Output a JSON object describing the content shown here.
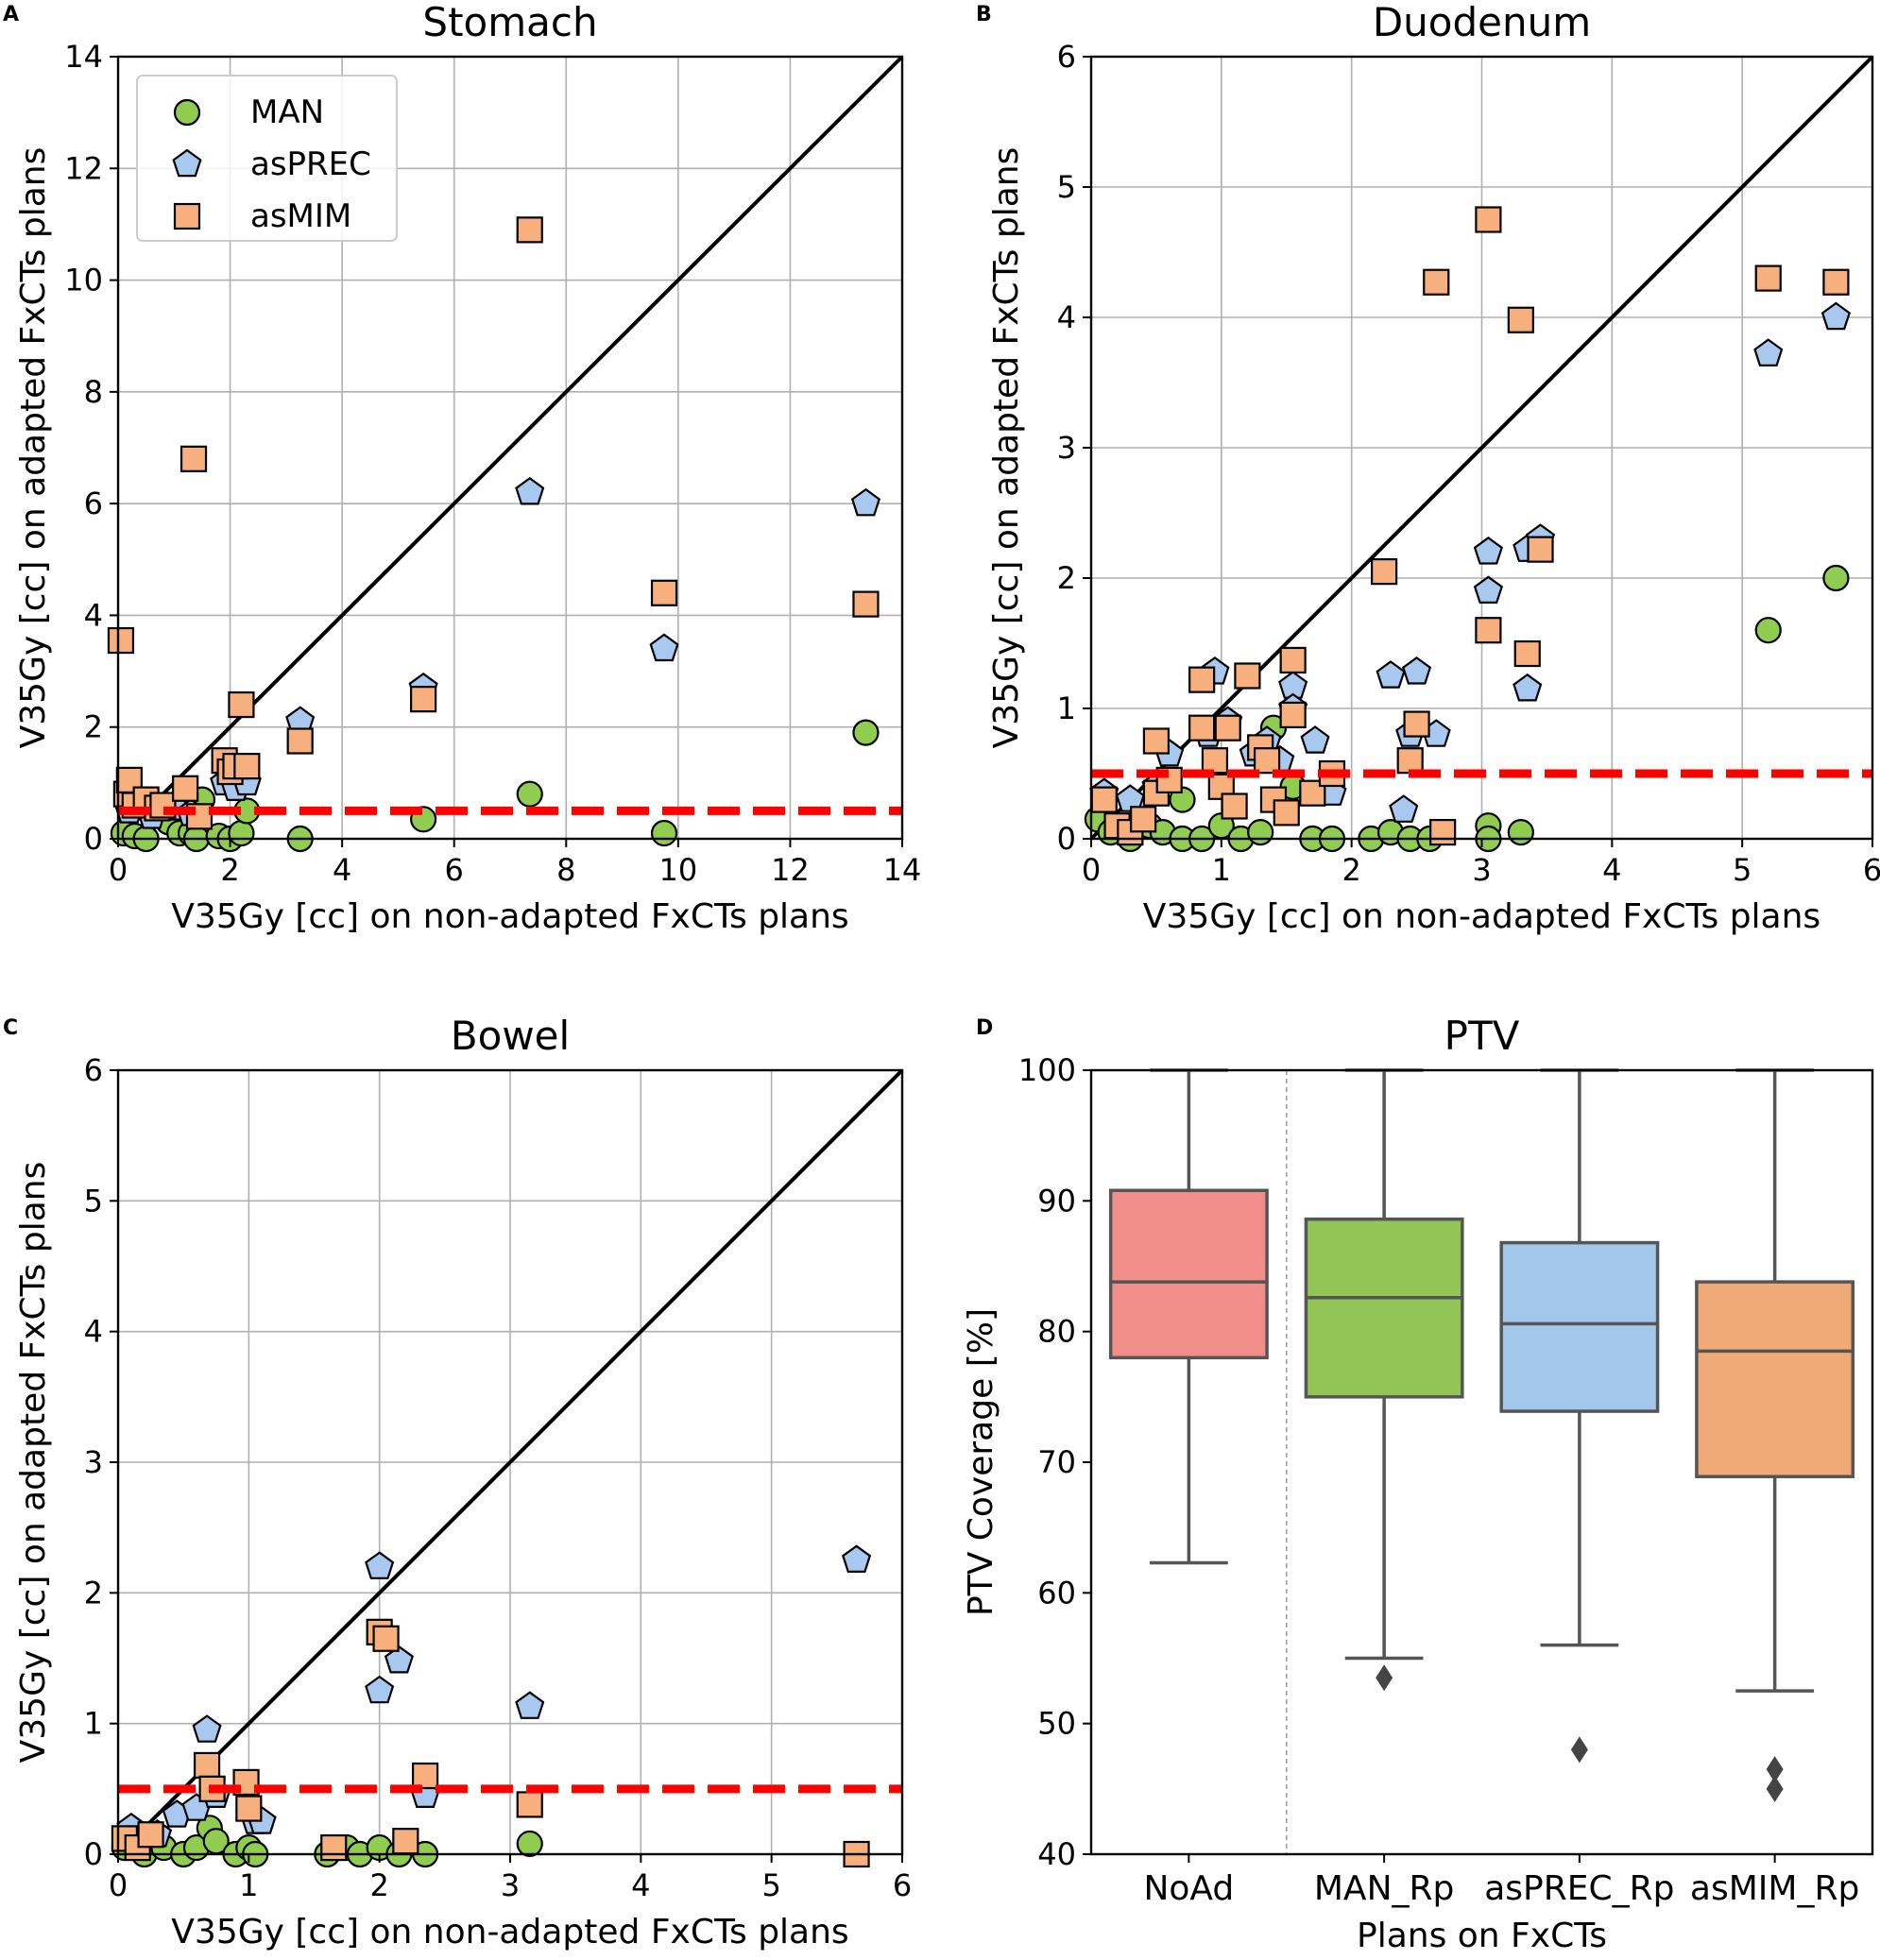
{
  "legend": {
    "entries": [
      {
        "name": "MAN",
        "marker": "circle",
        "color": "#8fcc50"
      },
      {
        "name": "asPREC",
        "marker": "pentagon",
        "color": "#a8c8f0"
      },
      {
        "name": "asMIM",
        "marker": "square",
        "color": "#f7b07d"
      }
    ]
  },
  "chart_data": [
    {
      "id": "A",
      "type": "scatter",
      "panel_label": "A",
      "title": "Stomach",
      "xlabel": "V35Gy [cc] on non-adapted FxCTs plans",
      "ylabel": "V35Gy [cc] on adapted FxCTs plans",
      "xlim": [
        0,
        14
      ],
      "ylim": [
        0,
        14
      ],
      "xticks": [
        "0",
        "2",
        "4",
        "6",
        "8",
        "10",
        "12",
        "14"
      ],
      "yticks": [
        "0",
        "2",
        "4",
        "6",
        "8",
        "10",
        "12",
        "14"
      ],
      "grid": true,
      "legend_position": "top-left",
      "reference_lines": [
        {
          "type": "identity",
          "color": "#000000",
          "style": "solid",
          "from": [
            0,
            0
          ],
          "to": [
            14,
            14
          ]
        },
        {
          "type": "threshold",
          "y": 0.5,
          "color": "#ff0000",
          "style": "dashed"
        }
      ],
      "series": [
        {
          "name": "MAN",
          "marker": "circle",
          "color": "#8fcc50",
          "points": [
            [
              0.1,
              0.1
            ],
            [
              0.3,
              0.05
            ],
            [
              0.5,
              0.0
            ],
            [
              0.9,
              0.3
            ],
            [
              1.1,
              0.1
            ],
            [
              1.3,
              0.1
            ],
            [
              1.4,
              0.0
            ],
            [
              1.5,
              0.7
            ],
            [
              1.8,
              0.05
            ],
            [
              2.0,
              0.0
            ],
            [
              2.2,
              0.1
            ],
            [
              2.3,
              0.5
            ],
            [
              3.25,
              0.0
            ],
            [
              5.45,
              0.35
            ],
            [
              7.35,
              0.8
            ],
            [
              9.75,
              0.1
            ],
            [
              13.35,
              1.9
            ]
          ]
        },
        {
          "name": "asPREC",
          "marker": "pentagon",
          "color": "#a8c8f0",
          "points": [
            [
              0.2,
              0.5
            ],
            [
              0.6,
              0.4
            ],
            [
              1.0,
              0.55
            ],
            [
              1.3,
              0.45
            ],
            [
              1.9,
              1.0
            ],
            [
              2.1,
              0.9
            ],
            [
              2.3,
              1.0
            ],
            [
              3.25,
              2.1
            ],
            [
              5.45,
              2.7
            ],
            [
              7.35,
              6.2
            ],
            [
              9.75,
              3.4
            ],
            [
              13.35,
              6.0
            ]
          ]
        },
        {
          "name": "asMIM",
          "marker": "square",
          "color": "#f7b07d",
          "points": [
            [
              0.05,
              3.55
            ],
            [
              0.15,
              0.8
            ],
            [
              0.2,
              1.05
            ],
            [
              0.3,
              0.6
            ],
            [
              0.5,
              0.7
            ],
            [
              0.7,
              0.55
            ],
            [
              0.8,
              0.6
            ],
            [
              1.2,
              0.9
            ],
            [
              1.35,
              6.8
            ],
            [
              1.45,
              0.4
            ],
            [
              1.9,
              1.4
            ],
            [
              2.0,
              1.2
            ],
            [
              2.1,
              1.3
            ],
            [
              2.2,
              2.4
            ],
            [
              2.3,
              1.3
            ],
            [
              3.25,
              1.75
            ],
            [
              5.45,
              2.5
            ],
            [
              7.35,
              10.9
            ],
            [
              9.75,
              4.4
            ],
            [
              13.35,
              4.2
            ]
          ]
        }
      ]
    },
    {
      "id": "B",
      "type": "scatter",
      "panel_label": "B",
      "title": "Duodenum",
      "xlabel": "V35Gy [cc] on non-adapted FxCTs plans",
      "ylabel": "V35Gy [cc] on adapted FxCTs plans",
      "xlim": [
        0,
        6
      ],
      "ylim": [
        0,
        6
      ],
      "xticks": [
        "0",
        "1",
        "2",
        "3",
        "4",
        "5",
        "6"
      ],
      "yticks": [
        "0",
        "1",
        "2",
        "3",
        "4",
        "5",
        "6"
      ],
      "grid": true,
      "reference_lines": [
        {
          "type": "identity",
          "color": "#000000",
          "style": "solid",
          "from": [
            0,
            0
          ],
          "to": [
            6,
            6
          ]
        },
        {
          "type": "threshold",
          "y": 0.5,
          "color": "#ff0000",
          "style": "dashed"
        }
      ],
      "series": [
        {
          "name": "MAN",
          "marker": "circle",
          "color": "#8fcc50",
          "points": [
            [
              0.05,
              0.15
            ],
            [
              0.15,
              0.05
            ],
            [
              0.3,
              0.0
            ],
            [
              0.45,
              0.1
            ],
            [
              0.55,
              0.05
            ],
            [
              0.7,
              0.0
            ],
            [
              0.7,
              0.3
            ],
            [
              0.85,
              0.0
            ],
            [
              1.0,
              0.1
            ],
            [
              1.15,
              0.0
            ],
            [
              1.3,
              0.05
            ],
            [
              1.4,
              0.85
            ],
            [
              1.5,
              0.25
            ],
            [
              1.55,
              0.4
            ],
            [
              1.7,
              0.0
            ],
            [
              1.85,
              0.0
            ],
            [
              2.15,
              0.0
            ],
            [
              2.3,
              0.05
            ],
            [
              2.45,
              0.0
            ],
            [
              2.6,
              0.0
            ],
            [
              3.05,
              0.1
            ],
            [
              3.05,
              0.0
            ],
            [
              3.3,
              0.05
            ],
            [
              3.45,
              2.28
            ],
            [
              5.2,
              1.6
            ],
            [
              5.72,
              2.0
            ]
          ]
        },
        {
          "name": "asPREC",
          "marker": "pentagon",
          "color": "#a8c8f0",
          "points": [
            [
              0.1,
              0.35
            ],
            [
              0.3,
              0.3
            ],
            [
              0.5,
              0.4
            ],
            [
              0.6,
              0.65
            ],
            [
              0.9,
              0.8
            ],
            [
              0.95,
              1.28
            ],
            [
              1.05,
              0.9
            ],
            [
              1.25,
              0.65
            ],
            [
              1.35,
              0.75
            ],
            [
              1.45,
              0.6
            ],
            [
              1.55,
              1.17
            ],
            [
              1.55,
              1.0
            ],
            [
              1.72,
              0.75
            ],
            [
              1.85,
              0.35
            ],
            [
              2.3,
              1.25
            ],
            [
              2.4,
              0.22
            ],
            [
              2.45,
              0.8
            ],
            [
              2.5,
              1.28
            ],
            [
              2.65,
              0.8
            ],
            [
              3.05,
              2.2
            ],
            [
              3.05,
              1.9
            ],
            [
              3.35,
              2.22
            ],
            [
              3.35,
              1.15
            ],
            [
              3.45,
              2.3
            ],
            [
              5.2,
              3.72
            ],
            [
              5.72,
              4.0
            ]
          ]
        },
        {
          "name": "asMIM",
          "marker": "square",
          "color": "#f7b07d",
          "points": [
            [
              0.1,
              0.3
            ],
            [
              0.2,
              0.1
            ],
            [
              0.3,
              0.05
            ],
            [
              0.4,
              0.15
            ],
            [
              0.5,
              0.35
            ],
            [
              0.5,
              0.75
            ],
            [
              0.6,
              0.45
            ],
            [
              0.85,
              1.22
            ],
            [
              0.85,
              0.85
            ],
            [
              0.95,
              0.6
            ],
            [
              1.0,
              0.4
            ],
            [
              1.05,
              0.85
            ],
            [
              1.1,
              0.25
            ],
            [
              1.2,
              1.25
            ],
            [
              1.3,
              0.7
            ],
            [
              1.35,
              0.6
            ],
            [
              1.4,
              0.3
            ],
            [
              1.5,
              0.2
            ],
            [
              1.55,
              1.37
            ],
            [
              1.55,
              0.95
            ],
            [
              1.7,
              0.35
            ],
            [
              1.85,
              0.5
            ],
            [
              2.25,
              2.05
            ],
            [
              2.45,
              0.6
            ],
            [
              2.5,
              0.88
            ],
            [
              2.7,
              0.05
            ],
            [
              3.05,
              4.75
            ],
            [
              3.05,
              1.6
            ],
            [
              3.3,
              3.98
            ],
            [
              3.35,
              1.42
            ],
            [
              3.45,
              2.22
            ],
            [
              2.65,
              4.27
            ],
            [
              5.2,
              4.3
            ],
            [
              5.72,
              4.27
            ]
          ]
        }
      ]
    },
    {
      "id": "C",
      "type": "scatter",
      "panel_label": "C",
      "title": "Bowel",
      "xlabel": "V35Gy [cc] on non-adapted FxCTs plans",
      "ylabel": "V35Gy [cc] on adapted FxCTs plans",
      "xlim": [
        0,
        6
      ],
      "ylim": [
        0,
        6
      ],
      "xticks": [
        "0",
        "1",
        "2",
        "3",
        "4",
        "5",
        "6"
      ],
      "yticks": [
        "0",
        "1",
        "2",
        "3",
        "4",
        "5",
        "6"
      ],
      "grid": true,
      "reference_lines": [
        {
          "type": "identity",
          "color": "#000000",
          "style": "solid",
          "from": [
            0,
            0
          ],
          "to": [
            6,
            6
          ]
        },
        {
          "type": "threshold",
          "y": 0.5,
          "color": "#ff0000",
          "style": "dashed"
        }
      ],
      "series": [
        {
          "name": "MAN",
          "marker": "circle",
          "color": "#8fcc50",
          "points": [
            [
              0.05,
              0.05
            ],
            [
              0.2,
              0.0
            ],
            [
              0.35,
              0.05
            ],
            [
              0.5,
              0.0
            ],
            [
              0.6,
              0.05
            ],
            [
              0.7,
              0.2
            ],
            [
              0.75,
              0.1
            ],
            [
              0.9,
              0.0
            ],
            [
              1.0,
              0.05
            ],
            [
              1.05,
              0.0
            ],
            [
              1.6,
              0.0
            ],
            [
              1.75,
              0.05
            ],
            [
              1.85,
              0.0
            ],
            [
              2.0,
              0.05
            ],
            [
              2.15,
              0.0
            ],
            [
              2.35,
              0.0
            ],
            [
              3.15,
              0.08
            ],
            [
              5.65,
              0.0
            ]
          ]
        },
        {
          "name": "asPREC",
          "marker": "pentagon",
          "color": "#a8c8f0",
          "points": [
            [
              0.1,
              0.2
            ],
            [
              0.3,
              0.15
            ],
            [
              0.45,
              0.3
            ],
            [
              0.6,
              0.35
            ],
            [
              0.68,
              0.95
            ],
            [
              0.75,
              0.45
            ],
            [
              1.05,
              0.25
            ],
            [
              1.1,
              0.25
            ],
            [
              2.0,
              2.2
            ],
            [
              2.0,
              1.25
            ],
            [
              2.15,
              1.48
            ],
            [
              2.35,
              0.45
            ],
            [
              3.15,
              1.13
            ],
            [
              5.65,
              2.25
            ]
          ]
        },
        {
          "name": "asMIM",
          "marker": "square",
          "color": "#f7b07d",
          "points": [
            [
              0.05,
              0.12
            ],
            [
              0.15,
              0.05
            ],
            [
              0.25,
              0.15
            ],
            [
              0.68,
              0.68
            ],
            [
              0.72,
              0.5
            ],
            [
              0.98,
              0.55
            ],
            [
              1.0,
              0.35
            ],
            [
              1.65,
              0.05
            ],
            [
              2.0,
              1.7
            ],
            [
              2.05,
              1.65
            ],
            [
              2.2,
              0.1
            ],
            [
              2.35,
              0.6
            ],
            [
              3.15,
              0.38
            ],
            [
              5.65,
              0.0
            ]
          ]
        }
      ]
    },
    {
      "id": "D",
      "type": "box",
      "panel_label": "D",
      "title": "PTV",
      "xlabel": "Plans on FxCTs",
      "ylabel": "PTV Coverage [%]",
      "ylim": [
        40,
        100
      ],
      "yticks": [
        "40",
        "50",
        "60",
        "70",
        "80",
        "90",
        "100"
      ],
      "grid": false,
      "separator_after_category": "NoAd",
      "categories": [
        "NoAd",
        "MAN_Rp",
        "asPREC_Rp",
        "asMIM_Rp"
      ],
      "boxes": [
        {
          "name": "NoAd",
          "color": "#f28e89",
          "whisker_low": 62.3,
          "q1": 78.0,
          "median": 83.8,
          "q3": 90.8,
          "whisker_high": 100,
          "outliers": []
        },
        {
          "name": "MAN_Rp",
          "color": "#92c556",
          "whisker_low": 55.0,
          "q1": 75.0,
          "median": 82.6,
          "q3": 88.6,
          "whisker_high": 100,
          "outliers": [
            53.5
          ]
        },
        {
          "name": "asPREC_Rp",
          "color": "#a3c6eb",
          "whisker_low": 56.0,
          "q1": 73.9,
          "median": 80.6,
          "q3": 86.8,
          "whisker_high": 100,
          "outliers": [
            48.0
          ]
        },
        {
          "name": "asMIM_Rp",
          "color": "#f0aa78",
          "whisker_low": 52.5,
          "q1": 68.9,
          "median": 78.5,
          "q3": 83.8,
          "whisker_high": 100,
          "outliers": [
            46.5,
            45.0
          ]
        }
      ]
    }
  ]
}
